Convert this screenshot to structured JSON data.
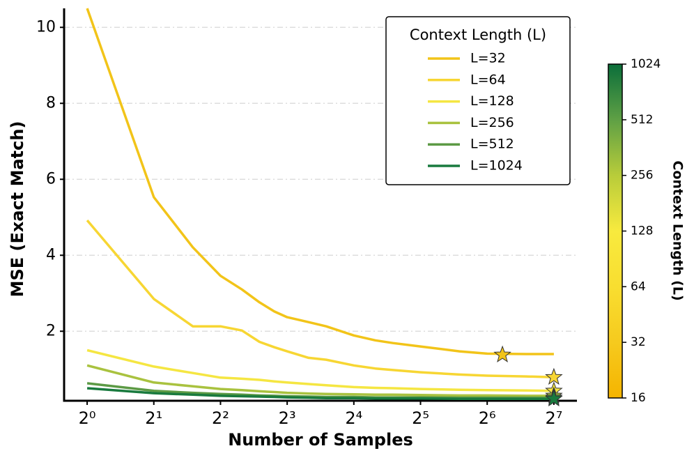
{
  "chart_data": {
    "type": "line",
    "x_label": "Number of Samples",
    "y_label": "MSE (Exact Match)",
    "xscale": "log2",
    "xlim": [
      0.787,
      162.7
    ],
    "xticks": [
      {
        "value": 1,
        "label": "2⁰"
      },
      {
        "value": 2,
        "label": "2¹"
      },
      {
        "value": 4,
        "label": "2²"
      },
      {
        "value": 8,
        "label": "2³"
      },
      {
        "value": 16,
        "label": "2⁴"
      },
      {
        "value": 32,
        "label": "2⁵"
      },
      {
        "value": 64,
        "label": "2⁶"
      },
      {
        "value": 128,
        "label": "2⁷"
      }
    ],
    "ylim": [
      0.17,
      10.5
    ],
    "yticks": [
      2,
      4,
      6,
      8,
      10
    ],
    "grid": true,
    "legend_title": "Context Length (L)",
    "legend": "upper right",
    "x": [
      1,
      2,
      3,
      4,
      5,
      6,
      7,
      8,
      10,
      12,
      16,
      20,
      24,
      32,
      48,
      64,
      96,
      128
    ],
    "series": [
      {
        "name": "L=32",
        "color": "#f2c419",
        "values": [
          10.5,
          5.53,
          4.21,
          3.46,
          3.1,
          2.76,
          2.52,
          2.37,
          2.24,
          2.13,
          1.89,
          1.76,
          1.69,
          1.6,
          1.47,
          1.41,
          1.4,
          1.4
        ],
        "best": {
          "x": 75,
          "value": 1.38
        }
      },
      {
        "name": "L=64",
        "color": "#f7d633",
        "values": [
          4.92,
          2.85,
          2.13,
          2.13,
          2.02,
          1.72,
          1.58,
          1.47,
          1.3,
          1.25,
          1.1,
          1.02,
          0.98,
          0.92,
          0.86,
          0.83,
          0.81,
          0.79
        ],
        "best": {
          "x": 128,
          "value": 0.79
        }
      },
      {
        "name": "L=128",
        "color": "#f5e642",
        "values": [
          1.5,
          1.07,
          0.9,
          0.78,
          0.75,
          0.72,
          0.68,
          0.65,
          0.61,
          0.58,
          0.53,
          0.51,
          0.5,
          0.48,
          0.46,
          0.45,
          0.44,
          0.43
        ],
        "best": {
          "x": 128,
          "value": 0.43
        }
      },
      {
        "name": "L=256",
        "color": "#a9c23f",
        "values": [
          1.1,
          0.65,
          0.55,
          0.48,
          0.45,
          0.42,
          0.4,
          0.38,
          0.36,
          0.35,
          0.34,
          0.33,
          0.33,
          0.32,
          0.31,
          0.31,
          0.3,
          0.3
        ],
        "best": {
          "x": 128,
          "value": 0.3
        }
      },
      {
        "name": "L=512",
        "color": "#5c9a45",
        "values": [
          0.63,
          0.43,
          0.38,
          0.35,
          0.33,
          0.31,
          0.3,
          0.29,
          0.28,
          0.27,
          0.27,
          0.26,
          0.26,
          0.26,
          0.25,
          0.25,
          0.25,
          0.25
        ],
        "best": {
          "x": 128,
          "value": 0.25
        }
      },
      {
        "name": "L=1024",
        "color": "#197a3e",
        "values": [
          0.5,
          0.37,
          0.33,
          0.3,
          0.29,
          0.28,
          0.27,
          0.26,
          0.25,
          0.24,
          0.24,
          0.23,
          0.23,
          0.23,
          0.22,
          0.22,
          0.22,
          0.22
        ],
        "best": {
          "x": 128,
          "value": 0.22
        }
      }
    ],
    "colorbar": {
      "label": "Context Length (L)",
      "scale": "log2",
      "lim": [
        16,
        1024
      ],
      "ticks": [
        16,
        32,
        64,
        128,
        256,
        512,
        1024
      ],
      "colors": [
        "#f5b400",
        "#f6ca1e",
        "#f8de30",
        "#f8ea3e",
        "#b8cc3a",
        "#5fa045",
        "#0b6e3a"
      ]
    }
  }
}
